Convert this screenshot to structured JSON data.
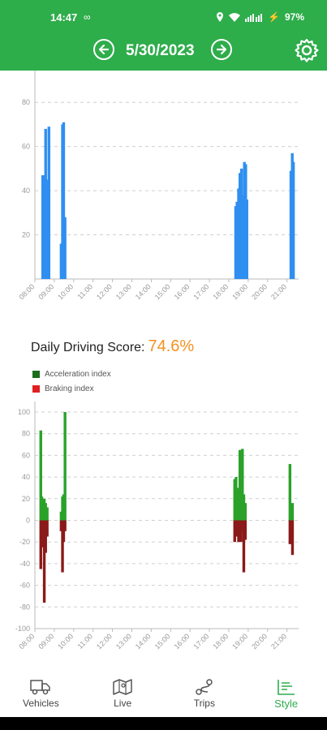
{
  "status": {
    "time": "14:47",
    "infinity": "∞",
    "battery": "97%"
  },
  "header": {
    "date": "5/30/2023",
    "prev_icon": "arrow-left-circle-icon",
    "next_icon": "arrow-right-circle-icon",
    "settings_icon": "gear-icon"
  },
  "score": {
    "label": "Daily Driving Score:",
    "value": "74.6%"
  },
  "legend": [
    {
      "label": "Acceleration index",
      "color": "#1a6e1a"
    },
    {
      "label": "Braking index",
      "color": "#e02020"
    }
  ],
  "colors": {
    "accent": "#2ead4b",
    "speed_bar": "#2f8ff0",
    "accel": "#2aa22a",
    "brake": "#8b1a1a",
    "score": "#f39321"
  },
  "chart_data": [
    {
      "type": "bar",
      "x_ticks": [
        "08:00",
        "09:00",
        "10:00",
        "11:00",
        "12:00",
        "13:00",
        "14:00",
        "15:00",
        "16:00",
        "17:00",
        "18:00",
        "19:00",
        "20:00",
        "21:00"
      ],
      "y_ticks": [
        "20",
        "40",
        "60",
        "80"
      ],
      "ylim": [
        0,
        90
      ],
      "grid": true,
      "series": [
        {
          "values": [
            [
              8.1,
              47
            ],
            [
              8.17,
              47
            ],
            [
              8.25,
              68
            ],
            [
              8.33,
              45
            ],
            [
              8.42,
              69
            ],
            [
              9.05,
              16
            ],
            [
              9.12,
              70
            ],
            [
              9.18,
              71
            ],
            [
              9.25,
              28
            ],
            [
              18.05,
              33
            ],
            [
              18.12,
              35
            ],
            [
              18.2,
              41
            ],
            [
              18.27,
              48
            ],
            [
              18.35,
              50
            ],
            [
              18.42,
              38
            ],
            [
              18.5,
              53
            ],
            [
              18.57,
              52
            ],
            [
              18.63,
              36
            ],
            [
              20.9,
              49
            ],
            [
              20.97,
              57
            ],
            [
              21.03,
              53
            ]
          ]
        }
      ]
    },
    {
      "type": "bar",
      "x_ticks": [
        "08:00",
        "09:00",
        "10:00",
        "11:00",
        "12:00",
        "13:00",
        "14:00",
        "15:00",
        "16:00",
        "17:00",
        "18:00",
        "19:00",
        "20:00",
        "21:00"
      ],
      "y_ticks": [
        "100",
        "80",
        "60",
        "40",
        "20",
        "0",
        "-20",
        "-40",
        "-60",
        "-80",
        "-100"
      ],
      "ylim": [
        -100,
        100
      ],
      "grid": true,
      "legend_position": "top-left",
      "series": [
        {
          "name": "Acceleration index",
          "values": [
            [
              8.0,
              83
            ],
            [
              8.05,
              22
            ],
            [
              8.1,
              8
            ],
            [
              8.18,
              20
            ],
            [
              8.25,
              16
            ],
            [
              8.33,
              12
            ],
            [
              9.05,
              8
            ],
            [
              9.12,
              22
            ],
            [
              9.18,
              24
            ],
            [
              9.25,
              100
            ],
            [
              18.0,
              38
            ],
            [
              18.07,
              40
            ],
            [
              18.13,
              30
            ],
            [
              18.2,
              14
            ],
            [
              18.27,
              65
            ],
            [
              18.33,
              18
            ],
            [
              18.4,
              66
            ],
            [
              18.47,
              24
            ],
            [
              18.55,
              16
            ],
            [
              20.85,
              52
            ],
            [
              20.92,
              14
            ],
            [
              20.98,
              16
            ]
          ]
        },
        {
          "name": "Braking index",
          "values": [
            [
              8.0,
              -45
            ],
            [
              8.05,
              -25
            ],
            [
              8.1,
              -15
            ],
            [
              8.18,
              -76
            ],
            [
              8.25,
              -30
            ],
            [
              8.33,
              -15
            ],
            [
              9.05,
              -10
            ],
            [
              9.12,
              -48
            ],
            [
              9.18,
              -20
            ],
            [
              9.25,
              -10
            ],
            [
              18.0,
              -20
            ],
            [
              18.07,
              -15
            ],
            [
              18.13,
              -10
            ],
            [
              18.2,
              -20
            ],
            [
              18.27,
              -15
            ],
            [
              18.33,
              -20
            ],
            [
              18.4,
              -10
            ],
            [
              18.47,
              -48
            ],
            [
              18.55,
              -18
            ],
            [
              20.85,
              -22
            ],
            [
              20.92,
              -15
            ],
            [
              20.98,
              -32
            ]
          ]
        }
      ]
    }
  ],
  "nav": [
    {
      "label": "Vehicles",
      "icon": "truck-icon"
    },
    {
      "label": "Live",
      "icon": "map-icon"
    },
    {
      "label": "Trips",
      "icon": "route-icon"
    },
    {
      "label": "Style",
      "icon": "bar-chart-icon"
    }
  ]
}
